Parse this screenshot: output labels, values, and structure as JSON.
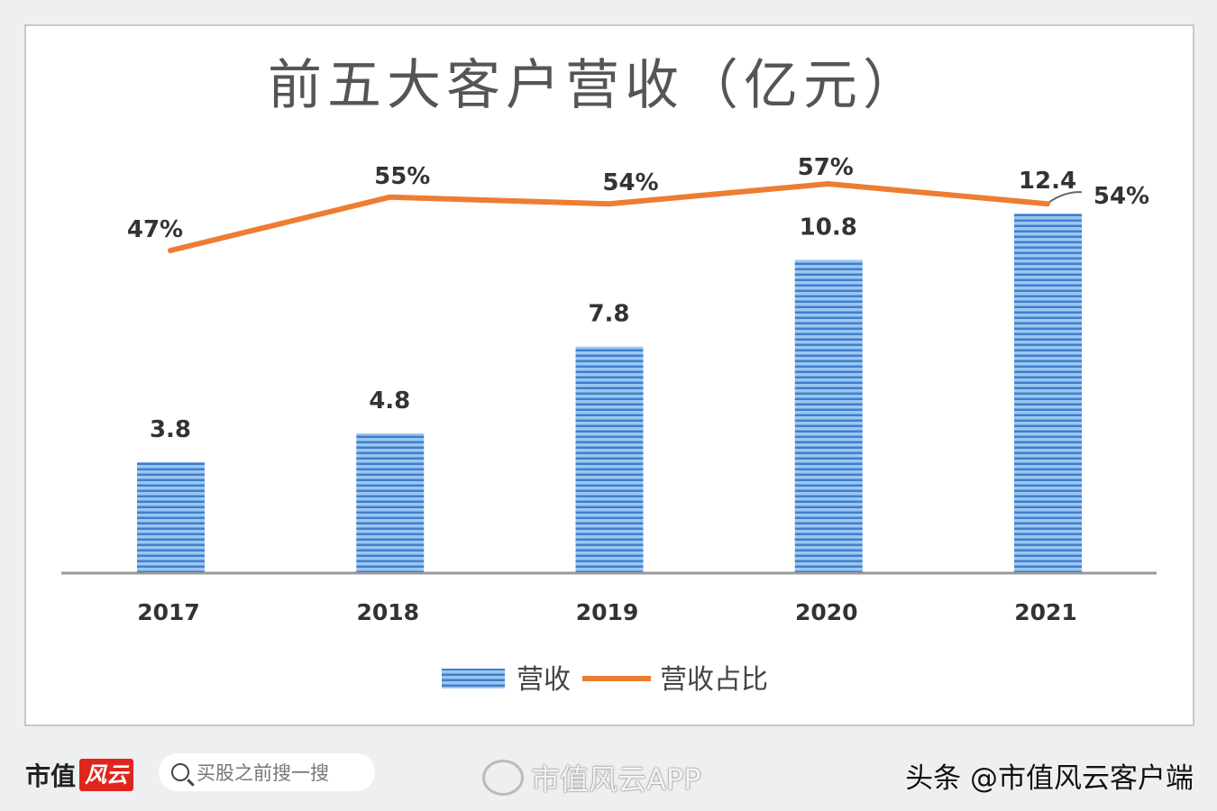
{
  "chart_data": {
    "type": "bar+line",
    "title": "前五大客户营收（亿元）",
    "categories": [
      "2017",
      "2018",
      "2019",
      "2020",
      "2021"
    ],
    "series": [
      {
        "name": "营收",
        "type": "bar",
        "values": [
          3.8,
          4.8,
          7.8,
          10.8,
          12.4
        ],
        "labels": [
          "3.8",
          "4.8",
          "7.8",
          "10.8",
          "12.4"
        ],
        "color": "#5b9bd5"
      },
      {
        "name": "营收占比",
        "type": "line",
        "values": [
          47,
          55,
          54,
          57,
          54
        ],
        "labels": [
          "47%",
          "55%",
          "54%",
          "57%",
          "54%"
        ],
        "color": "#ed7d31"
      }
    ],
    "legend_position": "bottom",
    "grid": false
  },
  "footer": {
    "brand": "市值",
    "brand_logo": "风云",
    "search_placeholder": "买股之前搜一搜",
    "watermark": "市值风云APP",
    "credit": "头条 @市值风云客户端"
  }
}
